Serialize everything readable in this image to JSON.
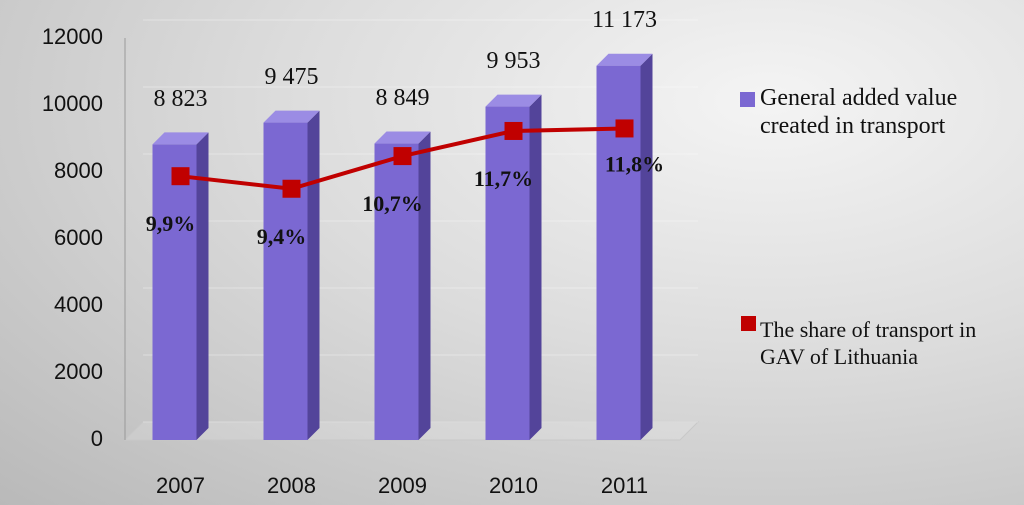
{
  "chart_data": {
    "type": "bar",
    "categories": [
      "2007",
      "2008",
      "2009",
      "2010",
      "2011"
    ],
    "series": [
      {
        "name": "General added value created in transport",
        "color": "#7b68d2",
        "values": [
          8823,
          9475,
          8849,
          9953,
          11173
        ],
        "value_labels": [
          "8 823",
          "9 475",
          "8 849",
          "9 953",
          "11 173"
        ]
      },
      {
        "name": "The share of transport in GAV of Lithuania",
        "type": "line",
        "axis": "y2",
        "color": "#c00000",
        "values": [
          9.9,
          9.4,
          10.7,
          11.7,
          11.8
        ],
        "value_labels": [
          "9,9%",
          "9,4%",
          "10,7%",
          "11,7%",
          "11,8%"
        ]
      }
    ],
    "ylim": [
      0,
      12000
    ],
    "yticks": [
      0,
      2000,
      4000,
      6000,
      8000,
      10000,
      12000
    ],
    "y2lim": [
      -0.6,
      15.4
    ],
    "grid": true
  }
}
